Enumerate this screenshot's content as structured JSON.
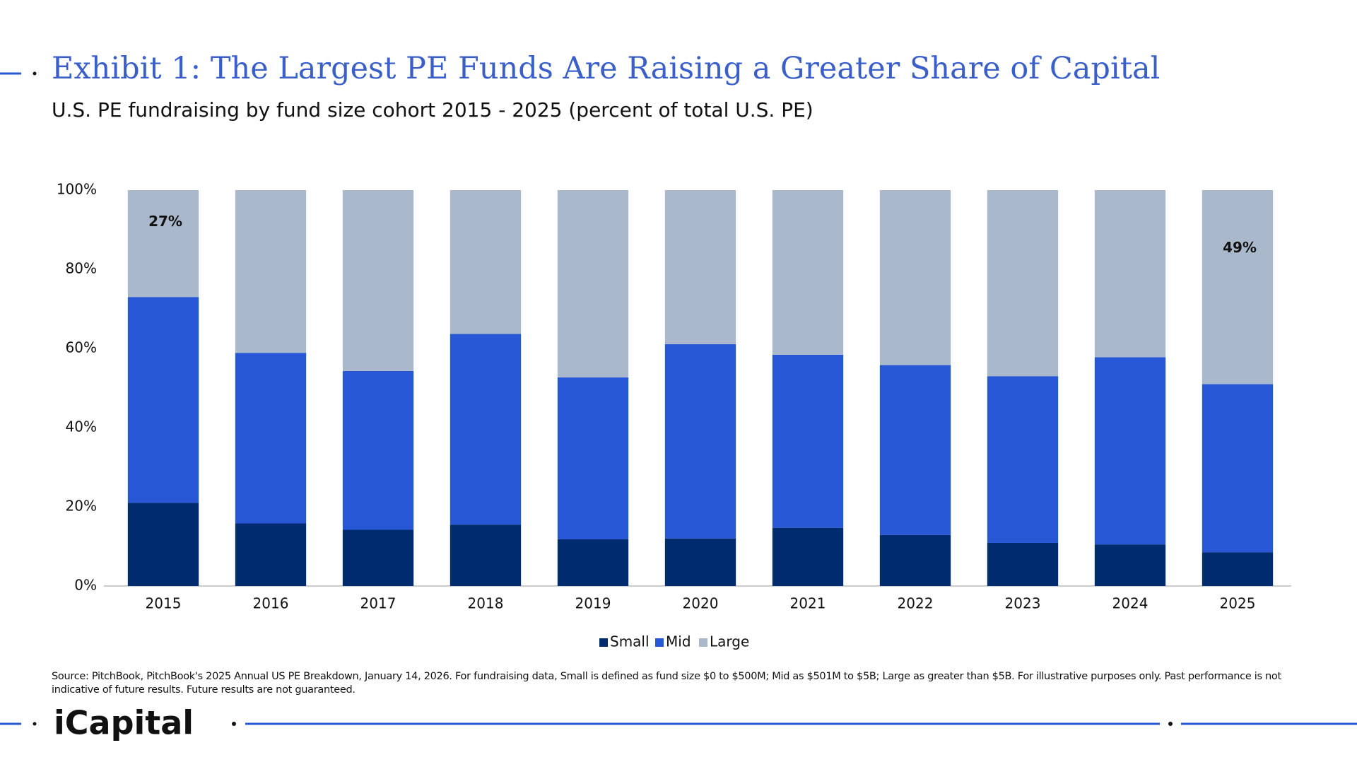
{
  "chart_data": {
    "type": "stacked_bar",
    "title": "Exhibit 1: The Largest PE Funds Are Raising a Greater Share of Capital",
    "subtitle": "U.S. PE fundraising by fund size cohort 2015 - 2025 (percent of total U.S. PE)",
    "categories": [
      "2015",
      "2016",
      "2017",
      "2018",
      "2019",
      "2020",
      "2021",
      "2022",
      "2023",
      "2024",
      "2025"
    ],
    "series": [
      {
        "name": "Small",
        "color": "#002b6e",
        "values": [
          21.0,
          15.8,
          14.2,
          15.5,
          11.8,
          12.0,
          14.7,
          12.9,
          10.9,
          10.5,
          8.5
        ]
      },
      {
        "name": "Mid",
        "color": "#2757d4",
        "values": [
          52.0,
          43.1,
          40.1,
          48.2,
          40.9,
          49.1,
          43.7,
          42.9,
          42.1,
          47.3,
          42.5
        ]
      },
      {
        "name": "Large",
        "color": "#a9b8ca",
        "values": [
          27.0,
          41.1,
          45.7,
          36.3,
          47.3,
          38.9,
          41.6,
          44.2,
          47.0,
          42.2,
          49.0
        ],
        "value_labels": [
          "27%",
          null,
          null,
          null,
          null,
          null,
          null,
          null,
          null,
          null,
          "49%"
        ]
      }
    ],
    "ylim": [
      0,
      100
    ],
    "yticks": [
      {
        "value": 0,
        "label": "0%"
      },
      {
        "value": 20,
        "label": "20%"
      },
      {
        "value": 40,
        "label": "40%"
      },
      {
        "value": 60,
        "label": "60%"
      },
      {
        "value": 80,
        "label": "80%"
      },
      {
        "value": 100,
        "label": "100%"
      }
    ],
    "grid": false,
    "legend": "bottom"
  },
  "footer": {
    "source": "Source: PitchBook, PitchBook's 2025 Annual US PE Breakdown, January 14, 2026. For fundraising data, Small is defined as fund size $0 to $500M; Mid as $501M to $5B; Large as greater than $5B. For illustrative purposes only. Past performance is not indicative of future results. Future results are not guaranteed.",
    "logo": "iCapital"
  }
}
